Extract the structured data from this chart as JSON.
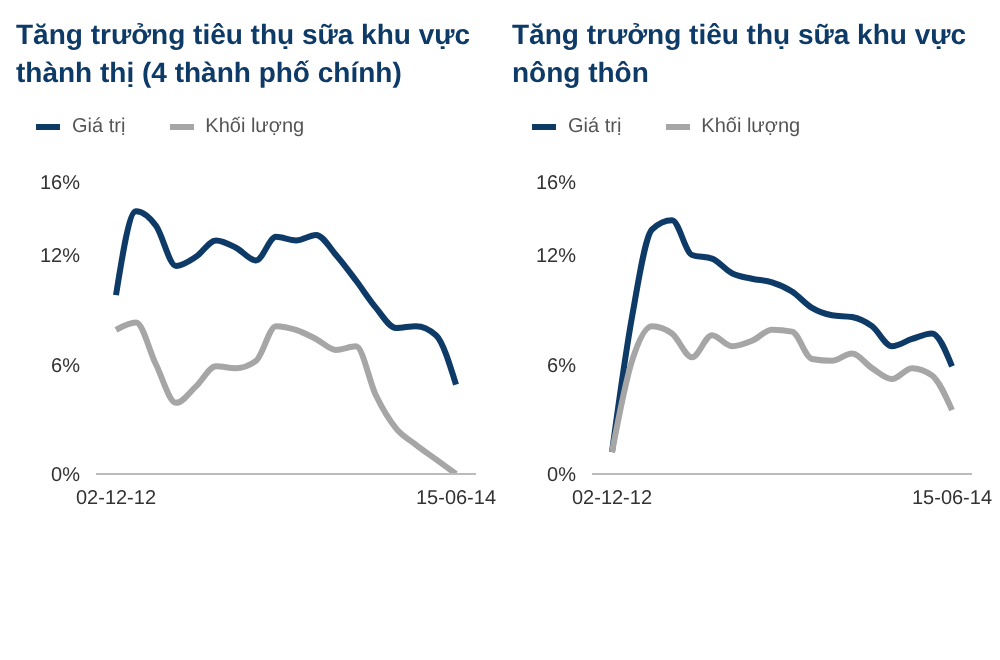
{
  "chart_data": [
    {
      "type": "line",
      "title": "Tăng trưởng tiêu thụ sữa khu vực thành thị (4 thành phố chính)",
      "categories": [
        "02-12-12",
        null,
        null,
        null,
        null,
        null,
        null,
        null,
        null,
        null,
        null,
        null,
        null,
        null,
        null,
        null,
        null,
        "15-06-14"
      ],
      "series": [
        {
          "name": "Giá trị",
          "color": "#0d3a66",
          "values": [
            9.8,
            14.4,
            13.6,
            11.4,
            11.9,
            12.8,
            12.4,
            11.7,
            13.0,
            12.8,
            13.1,
            12.0,
            10.6,
            9.1,
            8.0,
            8.1,
            7.6,
            4.9
          ]
        },
        {
          "name": "Khối lượng",
          "color": "#a6a6a6",
          "values": [
            7.9,
            8.3,
            6.0,
            3.9,
            4.8,
            5.9,
            5.8,
            6.2,
            8.1,
            7.9,
            7.4,
            6.8,
            7.0,
            4.3,
            2.5,
            1.6,
            0.8,
            0
          ]
        }
      ],
      "ylim": [
        0,
        16
      ],
      "yticks": [
        {
          "value": 0,
          "label": "0%"
        },
        {
          "value": 6,
          "label": "6%"
        },
        {
          "value": 12,
          "label": "12%"
        },
        {
          "value": 16,
          "label": "16%"
        }
      ],
      "grid": false,
      "legend": "top left",
      "marker": "none",
      "line_style": "solid"
    },
    {
      "type": "line",
      "title": "Tăng trưởng tiêu thụ sữa khu vực nông thôn",
      "categories": [
        "02-12-12",
        null,
        null,
        null,
        null,
        null,
        null,
        null,
        null,
        null,
        null,
        null,
        null,
        null,
        null,
        null,
        null,
        "15-06-14"
      ],
      "series": [
        {
          "name": "Giá trị",
          "color": "#0d3a66",
          "values": [
            1.2,
            8.6,
            13.4,
            13.9,
            12.0,
            11.8,
            11.0,
            10.7,
            10.5,
            10.0,
            9.1,
            8.7,
            8.6,
            8.1,
            7.0,
            7.4,
            7.7,
            5.9
          ]
        },
        {
          "name": "Khối lượng",
          "color": "#a6a6a6",
          "values": [
            1.2,
            6.2,
            8.1,
            7.7,
            6.4,
            7.6,
            7.0,
            7.3,
            7.9,
            7.8,
            6.3,
            6.2,
            6.6,
            5.8,
            5.2,
            5.8,
            5.4,
            3.5
          ]
        }
      ],
      "ylim": [
        0,
        16
      ],
      "yticks": [
        {
          "value": 0,
          "label": "0%"
        },
        {
          "value": 6,
          "label": "6%"
        },
        {
          "value": 12,
          "label": "12%"
        },
        {
          "value": 16,
          "label": "16%"
        }
      ],
      "grid": false,
      "legend": "top left",
      "marker": "none",
      "line_style": "solid"
    }
  ]
}
